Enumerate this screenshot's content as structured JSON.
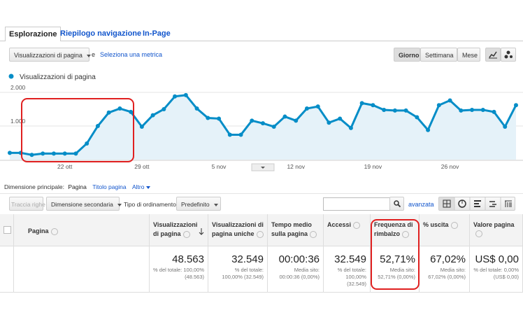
{
  "tabs": [
    "Esplorazione",
    "Riepilogo navigazione",
    "In-Page"
  ],
  "metric_selector": {
    "selected": "Visualizzazioni di pagina",
    "connector": "e",
    "link": "Seleziona una metrica"
  },
  "period_buttons": [
    "Giorno",
    "Settimana",
    "Mese"
  ],
  "chart_data": {
    "type": "line",
    "categories": [
      null,
      null,
      null,
      null,
      null,
      "22 ott",
      null,
      null,
      null,
      null,
      null,
      null,
      "29 ott",
      null,
      null,
      null,
      null,
      null,
      null,
      "5 nov",
      null,
      null,
      null,
      null,
      null,
      null,
      "12 nov",
      null,
      null,
      null,
      null,
      null,
      null,
      "19 nov",
      null,
      null,
      null,
      null,
      null,
      null,
      "26 nov",
      null,
      null,
      null,
      null,
      null,
      null
    ],
    "series": [
      {
        "name": "Visualizzazioni di pagina",
        "color": "#058dc7",
        "values": [
          200,
          200,
          140,
          180,
          180,
          180,
          180,
          480,
          1000,
          1400,
          1520,
          1420,
          980,
          1320,
          1500,
          1880,
          1920,
          1520,
          1240,
          1220,
          740,
          740,
          1160,
          1080,
          980,
          1280,
          1160,
          1520,
          1580,
          1100,
          1220,
          940,
          1680,
          1620,
          1480,
          1460,
          1460,
          1260,
          880,
          1620,
          1760,
          1460,
          1480,
          1480,
          1420,
          980,
          1620
        ]
      }
    ],
    "ylim": [
      0,
      2000
    ],
    "yticks": [
      {
        "value": 1000,
        "label": "1.000"
      },
      {
        "value": 2000,
        "label": "2.000"
      }
    ],
    "grid": true
  },
  "dimension_bar": {
    "label": "Dimensione principale:",
    "options": [
      "Pagina",
      "Titolo pagina",
      "Altro"
    ]
  },
  "toolbar": {
    "plot_rows": "Traccia righe",
    "secondary_dimension": "Dimensione secondaria",
    "sort_label": "Tipo di ordinamento:",
    "sort_value": "Predefinito",
    "advanced": "avanzata"
  },
  "table": {
    "columns": [
      "Pagina",
      "Visualizzazioni di pagina",
      "Visualizzazioni di pagina uniche",
      "Tempo medio sulla pagina",
      "Accessi",
      "Frequenza di rimbalzo",
      "% uscita",
      "Valore pagina"
    ],
    "totals": [
      {
        "value": "48.563",
        "note": "% del totale: 100,00% (48.563)"
      },
      {
        "value": "32.549",
        "note": "% del totale: 100,00% (32.549)"
      },
      {
        "value": "00:00:36",
        "note": "Media sito: 00:00:36 (0,00%)"
      },
      {
        "value": "32.549",
        "note": "% del totale: 100,00% (32.549)"
      },
      {
        "value": "52,71%",
        "note": "Media sito: 52,71% (0,00%)"
      },
      {
        "value": "67,02%",
        "note": "Media sito: 67,02% (0,00%)"
      },
      {
        "value": "US$ 0,00",
        "note": "% del totale: 0,00% (US$ 0,00)"
      }
    ]
  }
}
